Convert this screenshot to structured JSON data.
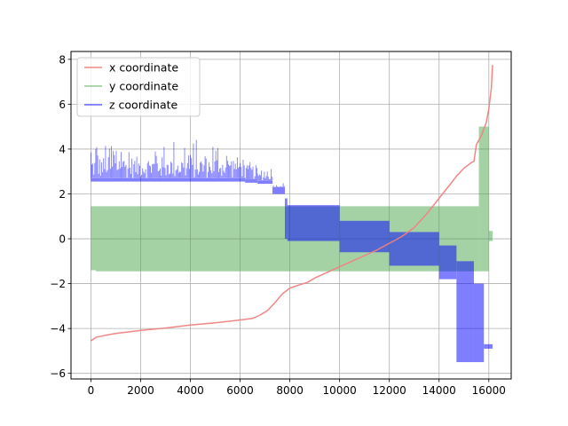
{
  "chart_data": {
    "type": "line",
    "title": "",
    "xlabel": "",
    "ylabel": "",
    "xlim": [
      -800,
      16900
    ],
    "ylim": [
      -6.25,
      8.35
    ],
    "xticks": [
      0,
      2000,
      4000,
      6000,
      8000,
      10000,
      12000,
      14000,
      16000
    ],
    "yticks": [
      -6,
      -4,
      -2,
      0,
      2,
      4,
      6,
      8
    ],
    "xtick_labels": [
      "0",
      "2000",
      "4000",
      "6000",
      "8000",
      "10000",
      "12000",
      "14000",
      "16000"
    ],
    "ytick_labels": [
      "−6",
      "−4",
      "−2",
      "0",
      "2",
      "4",
      "6",
      "8"
    ],
    "grid": true,
    "legend_position": "upper-left",
    "series": [
      {
        "name": "x coordinate",
        "color": "#f08080",
        "style": "smooth-line",
        "points": [
          [
            0,
            -4.55
          ],
          [
            200,
            -4.4
          ],
          [
            600,
            -4.3
          ],
          [
            1000,
            -4.22
          ],
          [
            2000,
            -4.08
          ],
          [
            3000,
            -3.98
          ],
          [
            4000,
            -3.85
          ],
          [
            5000,
            -3.75
          ],
          [
            6000,
            -3.62
          ],
          [
            6500,
            -3.55
          ],
          [
            6800,
            -3.4
          ],
          [
            7100,
            -3.2
          ],
          [
            7400,
            -2.85
          ],
          [
            7700,
            -2.45
          ],
          [
            8000,
            -2.2
          ],
          [
            8400,
            -2.05
          ],
          [
            8700,
            -1.95
          ],
          [
            9000,
            -1.75
          ],
          [
            9500,
            -1.5
          ],
          [
            10000,
            -1.25
          ],
          [
            10500,
            -1.0
          ],
          [
            11000,
            -0.75
          ],
          [
            11500,
            -0.5
          ],
          [
            12000,
            -0.2
          ],
          [
            12500,
            0.1
          ],
          [
            13000,
            0.5
          ],
          [
            13500,
            1.1
          ],
          [
            14000,
            1.8
          ],
          [
            14500,
            2.5
          ],
          [
            14700,
            2.8
          ],
          [
            15000,
            3.15
          ],
          [
            15300,
            3.4
          ],
          [
            15400,
            3.45
          ],
          [
            15500,
            4.2
          ],
          [
            15700,
            4.6
          ],
          [
            15900,
            5.2
          ],
          [
            16000,
            5.8
          ],
          [
            16100,
            6.7
          ],
          [
            16150,
            7.75
          ]
        ]
      },
      {
        "name": "y coordinate",
        "color": "#4ca64c",
        "style": "noise-band",
        "bands": [
          {
            "x0": 0,
            "x1": 200,
            "low": -1.4,
            "high": 1.45
          },
          {
            "x0": 200,
            "x1": 15600,
            "low": -1.45,
            "high": 1.45
          },
          {
            "x0": 15600,
            "x1": 16000,
            "low": -1.45,
            "high": 5.0
          },
          {
            "x0": 16000,
            "x1": 16150,
            "low": -0.1,
            "high": 0.35
          }
        ]
      },
      {
        "name": "z coordinate",
        "color": "#0000ff",
        "style": "noise-band",
        "bands": [
          {
            "x0": 0,
            "x1": 6200,
            "low": 2.55,
            "high": 2.7,
            "spike_max": 4.45
          },
          {
            "x0": 6200,
            "x1": 6700,
            "low": 2.5,
            "high": 2.65,
            "spike_max": 3.8
          },
          {
            "x0": 6700,
            "x1": 7300,
            "low": 2.45,
            "high": 2.6,
            "spike_max": 3.2
          },
          {
            "x0": 7300,
            "x1": 7800,
            "low": 2.0,
            "high": 2.3,
            "spike_max": 2.5
          },
          {
            "x0": 7800,
            "x1": 7900,
            "low": 0.0,
            "high": 1.8
          },
          {
            "x0": 7900,
            "x1": 10000,
            "low": -0.1,
            "high": 1.5
          },
          {
            "x0": 10000,
            "x1": 12000,
            "low": -0.6,
            "high": 0.8
          },
          {
            "x0": 12000,
            "x1": 14000,
            "low": -1.2,
            "high": 0.3
          },
          {
            "x0": 14000,
            "x1": 14700,
            "low": -1.8,
            "high": -0.3
          },
          {
            "x0": 14700,
            "x1": 15400,
            "low": -5.5,
            "high": -1.0
          },
          {
            "x0": 15400,
            "x1": 15800,
            "low": -5.5,
            "high": -2.0
          },
          {
            "x0": 15800,
            "x1": 16150,
            "low": -4.9,
            "high": -4.7
          }
        ]
      }
    ]
  }
}
